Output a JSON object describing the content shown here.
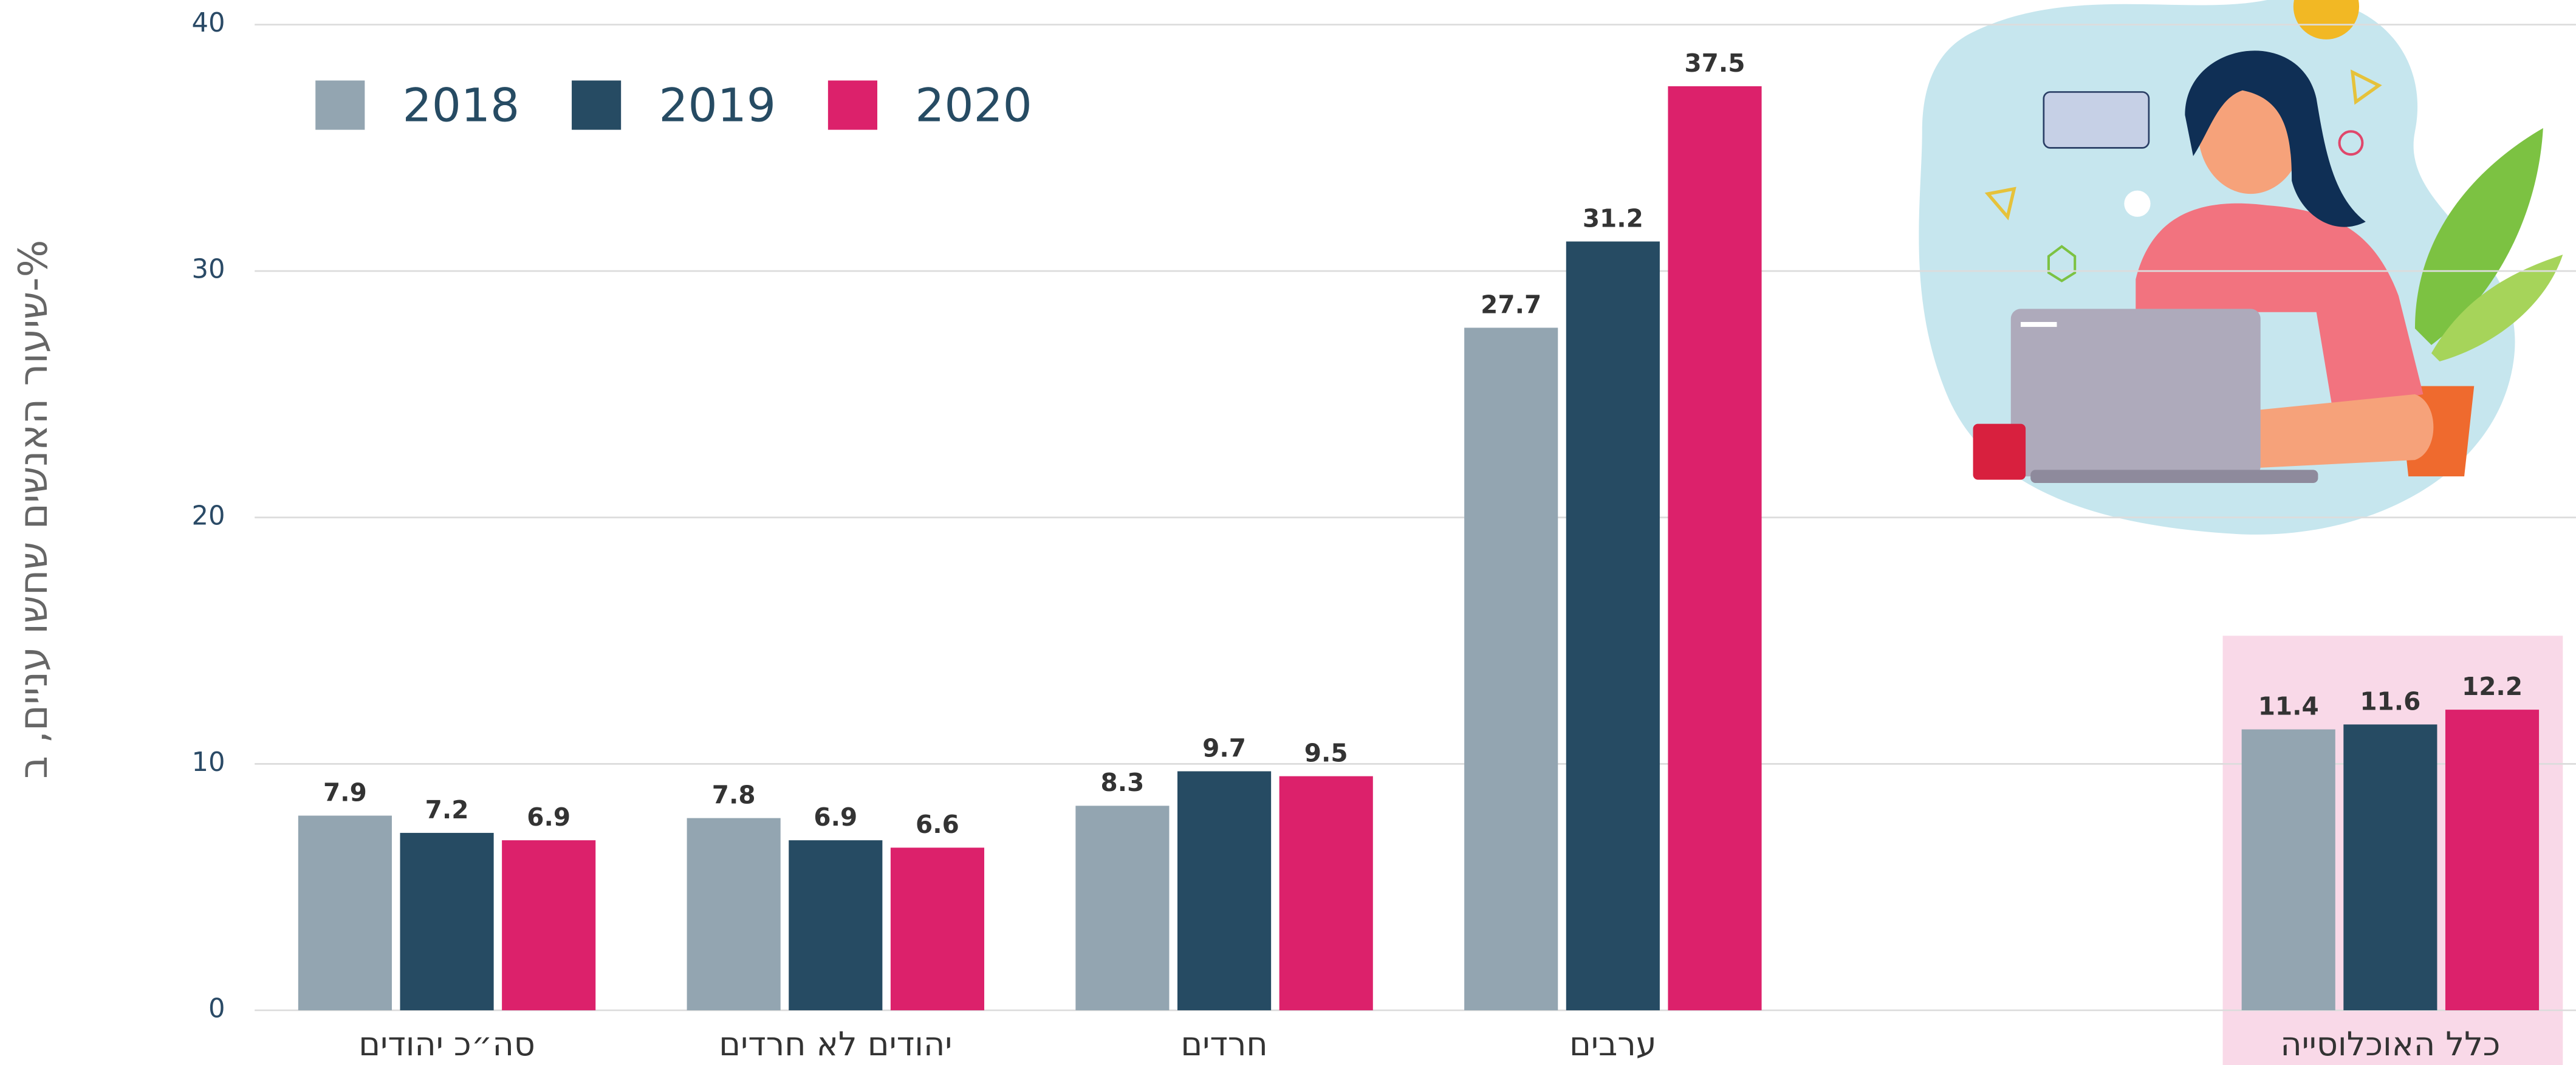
{
  "chart_data": {
    "type": "bar",
    "y_label": "שיעור האנשים שחשו עניים, ב-%",
    "categories": [
      "סה״כ יהודים",
      "יהודים לא חרדים",
      "חרדים",
      "ערבים",
      null,
      "כלל האוכלוסייה"
    ],
    "series": [
      {
        "name": "2018",
        "color": "#93a5b1",
        "values": [
          7.9,
          7.8,
          8.3,
          27.7,
          null,
          11.4
        ]
      },
      {
        "name": "2019",
        "color": "#264b63",
        "values": [
          7.2,
          6.9,
          9.7,
          31.2,
          null,
          11.6
        ]
      },
      {
        "name": "2020",
        "color": "#dc216b",
        "values": [
          6.9,
          6.6,
          9.5,
          37.5,
          null,
          12.2
        ]
      }
    ],
    "ylim": [
      0,
      40
    ],
    "yticks": [
      0,
      10,
      20,
      30,
      40
    ],
    "grid": true,
    "legend": "top-left"
  }
}
